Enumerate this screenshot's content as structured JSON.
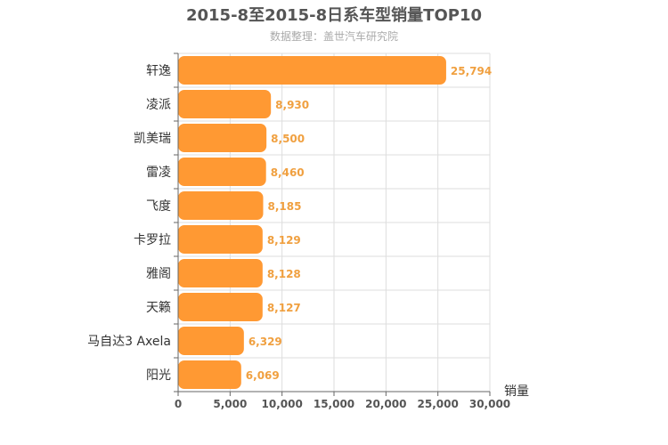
{
  "chart_data": {
    "type": "bar",
    "orientation": "horizontal",
    "title": "2015-8至2015-8日系车型销量TOP10",
    "subtitle": "数据整理：盖世汽车研究院",
    "xlabel": "销量",
    "categories": [
      "轩逸",
      "凌派",
      "凯美瑞",
      "雷凌",
      "飞度",
      "卡罗拉",
      "雅阁",
      "天籁",
      "马自达3 Axela",
      "阳光"
    ],
    "values": [
      25794,
      8930,
      8500,
      8460,
      8185,
      8129,
      8128,
      8127,
      6329,
      6069
    ],
    "data_labels": [
      "25,794",
      "8,930",
      "8,500",
      "8,460",
      "8,185",
      "8,129",
      "8,128",
      "8,127",
      "6,329",
      "6,069"
    ],
    "xlim": [
      0,
      30000
    ],
    "xticks": [
      0,
      5000,
      10000,
      15000,
      20000,
      25000,
      30000
    ],
    "xtick_labels": [
      "0",
      "5,000",
      "10,000",
      "15,000",
      "20,000",
      "25,000",
      "30,000"
    ],
    "grid": true,
    "colors": {
      "bar": "#ff9933",
      "label": "#f0a040",
      "grid": "#dddddd",
      "axis": "#666666"
    }
  }
}
